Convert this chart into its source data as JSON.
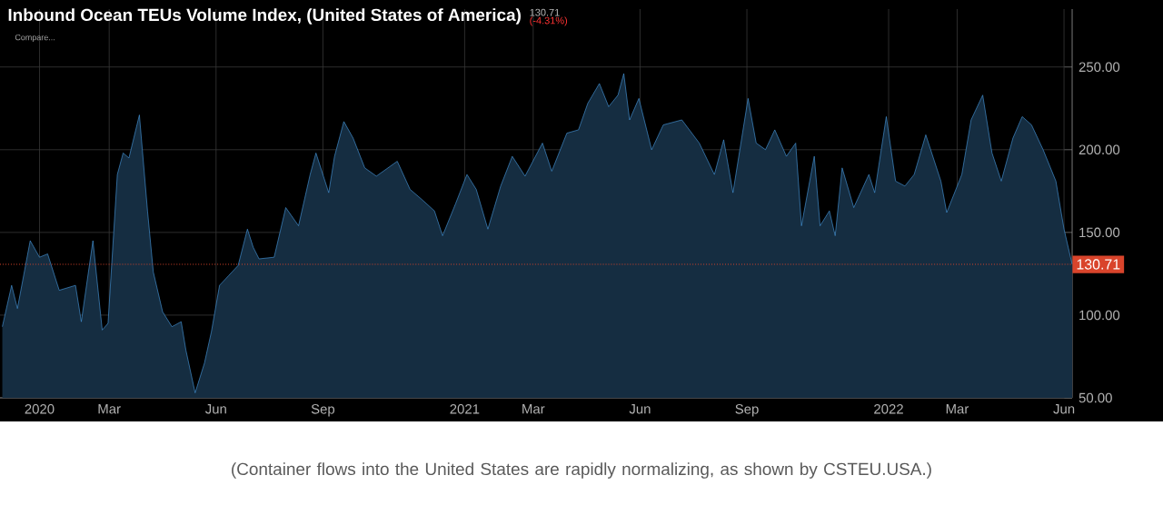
{
  "chart_data": {
    "type": "area",
    "title": "Inbound Ocean TEUs Volume Index, (United States of America)",
    "annotations": [
      "130.71",
      "(-4.31%)",
      "Compare...",
      "(Container flows into the United States are rapidly normalizing, as shown by CSTEU.USA.)"
    ],
    "series": [
      {
        "color": "#4a9fe8",
        "x": [
          "2019-11-30",
          "2019-12-08",
          "2019-12-13",
          "2019-12-24",
          "2020-01-01",
          "2020-01-08",
          "2020-01-18",
          "2020-02-01",
          "2020-02-06",
          "2020-02-16",
          "2020-02-24",
          "2020-02-29",
          "2020-03-08",
          "2020-03-13",
          "2020-03-18",
          "2020-03-27",
          "2020-04-03",
          "2020-04-08",
          "2020-04-16",
          "2020-04-24",
          "2020-05-02",
          "2020-05-06",
          "2020-05-14",
          "2020-05-22",
          "2020-05-28",
          "2020-06-04",
          "2020-06-12",
          "2020-06-20",
          "2020-06-28",
          "2020-07-03",
          "2020-07-08",
          "2020-07-21",
          "2020-07-31",
          "2020-08-11",
          "2020-08-21",
          "2020-08-26",
          "2020-09-06",
          "2020-09-11",
          "2020-09-19",
          "2020-09-27",
          "2020-10-07",
          "2020-10-17",
          "2020-11-04",
          "2020-11-15",
          "2020-11-25",
          "2020-12-06",
          "2020-12-13",
          "2020-12-24",
          "2021-01-03",
          "2021-01-11",
          "2021-01-21",
          "2021-02-01",
          "2021-02-11",
          "2021-02-22",
          "2021-03-09",
          "2021-03-17",
          "2021-03-30",
          "2021-04-09",
          "2021-04-17",
          "2021-04-27",
          "2021-05-05",
          "2021-05-13",
          "2021-05-18",
          "2021-05-23",
          "2021-05-31",
          "2021-06-11",
          "2021-06-21",
          "2021-07-07",
          "2021-07-22",
          "2021-08-04",
          "2021-08-12",
          "2021-08-20",
          "2021-09-02",
          "2021-09-09",
          "2021-09-17",
          "2021-09-25",
          "2021-10-05",
          "2021-10-13",
          "2021-10-18",
          "2021-10-29",
          "2021-11-03",
          "2021-11-11",
          "2021-11-16",
          "2021-11-22",
          "2021-12-02",
          "2021-12-15",
          "2021-12-20",
          "2021-12-30",
          "2022-01-07",
          "2022-01-15",
          "2022-01-23",
          "2022-02-02",
          "2022-02-15",
          "2022-02-20",
          "2022-03-05",
          "2022-03-13",
          "2022-03-23",
          "2022-03-31",
          "2022-04-08",
          "2022-04-18",
          "2022-04-26",
          "2022-05-04",
          "2022-05-14",
          "2022-05-25",
          "2022-06-01",
          "2022-06-08"
        ],
        "values": [
          93,
          118,
          104,
          145,
          135,
          137,
          115,
          118,
          96,
          145,
          91,
          95,
          185,
          198,
          195,
          221,
          163,
          126,
          102,
          93,
          96,
          79,
          53,
          71,
          90,
          118,
          124,
          130,
          152,
          141,
          134,
          135,
          165,
          154,
          185,
          198,
          174,
          196,
          217,
          207,
          189,
          184,
          193,
          176,
          170,
          163,
          148,
          167,
          185,
          176,
          152,
          178,
          196,
          184,
          204,
          187,
          210,
          212,
          228,
          240,
          226,
          233,
          246,
          218,
          231,
          200,
          215,
          218,
          204,
          185,
          206,
          174,
          231,
          204,
          200,
          212,
          196,
          204,
          154,
          196,
          154,
          163,
          148,
          189,
          165,
          185,
          174,
          220,
          181,
          178,
          185,
          209,
          181,
          162,
          185,
          218,
          233,
          198,
          181,
          207,
          220,
          215,
          200,
          181,
          152,
          130.71
        ]
      }
    ],
    "xlim": [
      "2019-11-28",
      "2022-06-08"
    ],
    "ylim": [
      50,
      285
    ],
    "xticks": [
      {
        "value": "2020-01-01",
        "label": "2020"
      },
      {
        "value": "2020-03-01",
        "label": "Mar"
      },
      {
        "value": "2020-06-01",
        "label": "Jun"
      },
      {
        "value": "2020-09-01",
        "label": "Sep"
      },
      {
        "value": "2021-01-01",
        "label": "2021"
      },
      {
        "value": "2021-03-01",
        "label": "Mar"
      },
      {
        "value": "2021-06-01",
        "label": "Jun"
      },
      {
        "value": "2021-09-01",
        "label": "Sep"
      },
      {
        "value": "2022-01-01",
        "label": "2022"
      },
      {
        "value": "2022-03-01",
        "label": "Mar"
      },
      {
        "value": "2022-06-01",
        "label": "Jun"
      }
    ],
    "yticks": [
      {
        "value": 50,
        "label": "50.00"
      },
      {
        "value": 100,
        "label": "100.00"
      },
      {
        "value": 150,
        "label": "150.00"
      },
      {
        "value": 200,
        "label": "200.00"
      },
      {
        "value": 250,
        "label": "250.00"
      }
    ],
    "ref_lines": [
      {
        "axis": "y",
        "value": 130.71,
        "label": "130.71",
        "color": "#d9442b",
        "line_style": "dotted"
      }
    ],
    "grid": true
  }
}
